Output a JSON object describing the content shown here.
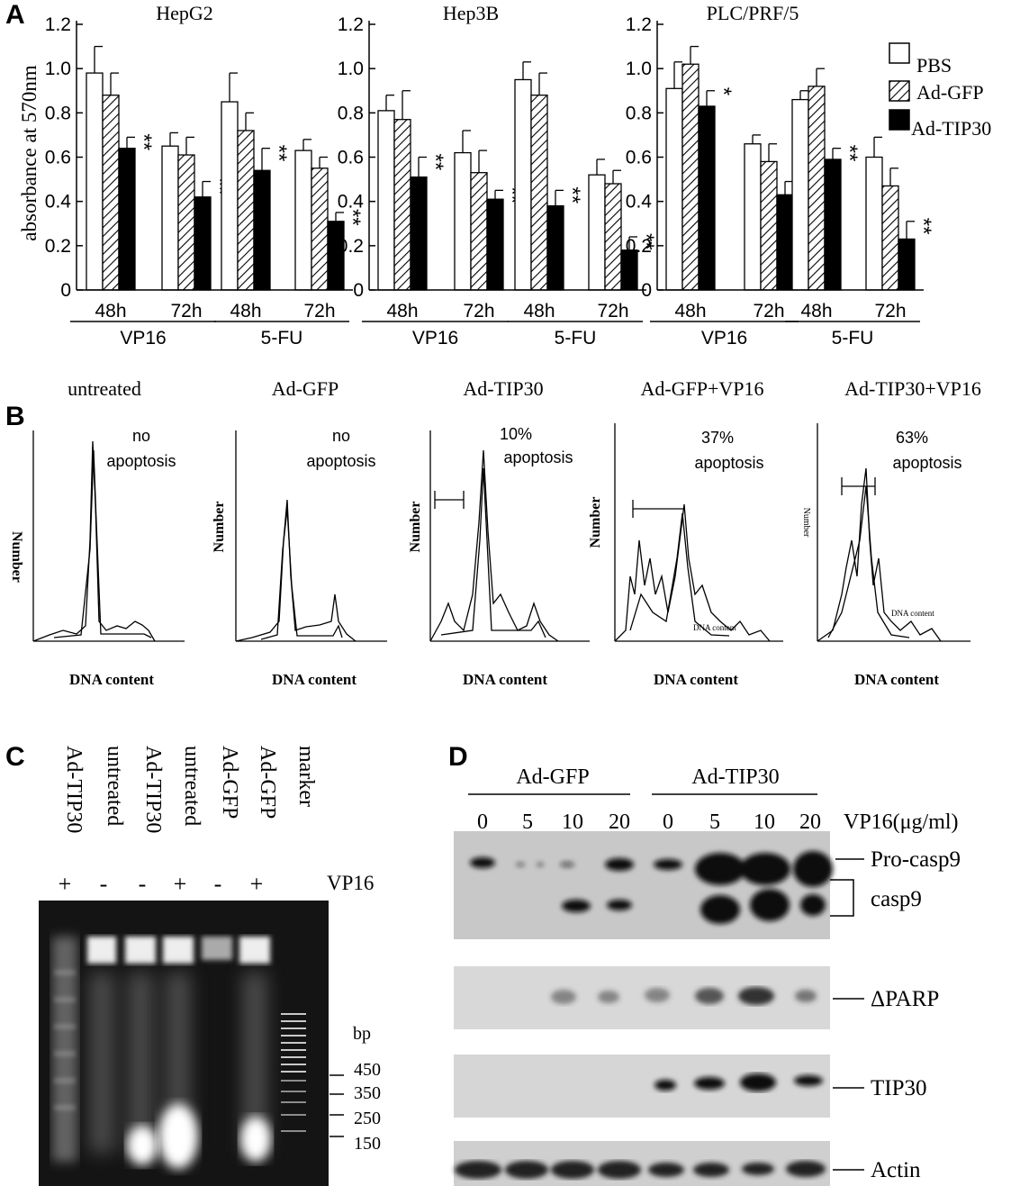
{
  "panels": {
    "A": "A",
    "B": "B",
    "C": "C",
    "D": "D"
  },
  "chart_data": [
    {
      "type": "bar",
      "title": "HepG2",
      "ylabel": "absorbance at 570nm",
      "ylim": [
        0,
        1.2
      ],
      "yticks": [
        "0",
        "0.2",
        "0.4",
        "0.6",
        "0.8",
        "1.0",
        "1.2"
      ],
      "categories": [
        "48h",
        "72h",
        "48h",
        "72h"
      ],
      "groups": [
        "VP16",
        "5-FU"
      ],
      "series": [
        {
          "name": "PBS",
          "values": [
            0.98,
            0.65,
            0.85,
            0.63
          ],
          "err": [
            0.12,
            0.06,
            0.13,
            0.05
          ]
        },
        {
          "name": "Ad-GFP",
          "values": [
            0.88,
            0.61,
            0.72,
            0.55
          ],
          "err": [
            0.1,
            0.08,
            0.08,
            0.05
          ]
        },
        {
          "name": "Ad-TIP30",
          "values": [
            0.64,
            0.42,
            0.54,
            0.31
          ],
          "err": [
            0.05,
            0.07,
            0.1,
            0.04
          ]
        }
      ],
      "annotations": [
        "**",
        "**",
        "**",
        "**"
      ]
    },
    {
      "type": "bar",
      "title": "Hep3B",
      "ylim": [
        0,
        1.2
      ],
      "yticks": [
        "0",
        "0.2",
        "0.4",
        "0.6",
        "0.8",
        "1.0",
        "1.2"
      ],
      "categories": [
        "48h",
        "72h",
        "48h",
        "72h"
      ],
      "groups": [
        "VP16",
        "5-FU"
      ],
      "series": [
        {
          "name": "PBS",
          "values": [
            0.81,
            0.62,
            0.95,
            0.52
          ],
          "err": [
            0.07,
            0.1,
            0.08,
            0.07
          ]
        },
        {
          "name": "Ad-GFP",
          "values": [
            0.77,
            0.53,
            0.88,
            0.48
          ],
          "err": [
            0.13,
            0.1,
            0.1,
            0.06
          ]
        },
        {
          "name": "Ad-TIP30",
          "values": [
            0.51,
            0.41,
            0.38,
            0.18
          ],
          "err": [
            0.09,
            0.04,
            0.07,
            0.06
          ]
        }
      ],
      "annotations": [
        "**",
        "**",
        "**",
        "**"
      ]
    },
    {
      "type": "bar",
      "title": "PLC/PRF/5",
      "ylim": [
        0,
        1.2
      ],
      "yticks": [
        "0",
        "0.2",
        "0.4",
        "0.6",
        "0.8",
        "1.0",
        "1.2"
      ],
      "categories": [
        "48h",
        "72h",
        "48h",
        "72h"
      ],
      "groups": [
        "VP16",
        "5-FU"
      ],
      "series": [
        {
          "name": "PBS",
          "values": [
            0.91,
            0.66,
            0.86,
            0.6
          ],
          "err": [
            0.12,
            0.04,
            0.04,
            0.09
          ]
        },
        {
          "name": "Ad-GFP",
          "values": [
            1.02,
            0.58,
            0.92,
            0.47
          ],
          "err": [
            0.08,
            0.08,
            0.08,
            0.08
          ]
        },
        {
          "name": "Ad-TIP30",
          "values": [
            0.83,
            0.43,
            0.59,
            0.23
          ],
          "err": [
            0.07,
            0.06,
            0.05,
            0.08
          ]
        }
      ],
      "annotations": [
        "*",
        "**",
        "**",
        "**"
      ]
    }
  ],
  "legend": [
    "PBS",
    "Ad-GFP",
    "Ad-TIP30"
  ],
  "flow": {
    "ylabel": "Number",
    "xlabel": "DNA content",
    "panels": [
      {
        "title": "untreated",
        "note1": "no",
        "note2": "apoptosis"
      },
      {
        "title": "Ad-GFP",
        "note1": "no",
        "note2": "apoptosis"
      },
      {
        "title": "Ad-TIP30",
        "note1": "10%",
        "note2": "apoptosis"
      },
      {
        "title": "Ad-GFP+VP16",
        "note1": "37%",
        "note2": "apoptosis"
      },
      {
        "title": "Ad-TIP30+VP16",
        "note1": "63%",
        "note2": "apoptosis"
      }
    ]
  },
  "gel": {
    "lanes": [
      "Ad-TIP30",
      "untreated",
      "Ad-TIP30",
      "untreated",
      "Ad-GFP",
      "Ad-GFP",
      "marker"
    ],
    "vp16": [
      "+",
      "-",
      "-",
      "+",
      "-",
      "+"
    ],
    "vp16_label": "VP16",
    "bp_label": "bp",
    "sizes": [
      "450",
      "350",
      "250",
      "150"
    ]
  },
  "western": {
    "groups": [
      "Ad-GFP",
      "Ad-TIP30"
    ],
    "doses": [
      "0",
      "5",
      "10",
      "20",
      "0",
      "5",
      "10",
      "20"
    ],
    "dose_label": "VP16(μg/ml)",
    "labels": [
      "Pro-casp9",
      "casp9",
      "ΔPARP",
      "TIP30",
      "Actin"
    ]
  }
}
